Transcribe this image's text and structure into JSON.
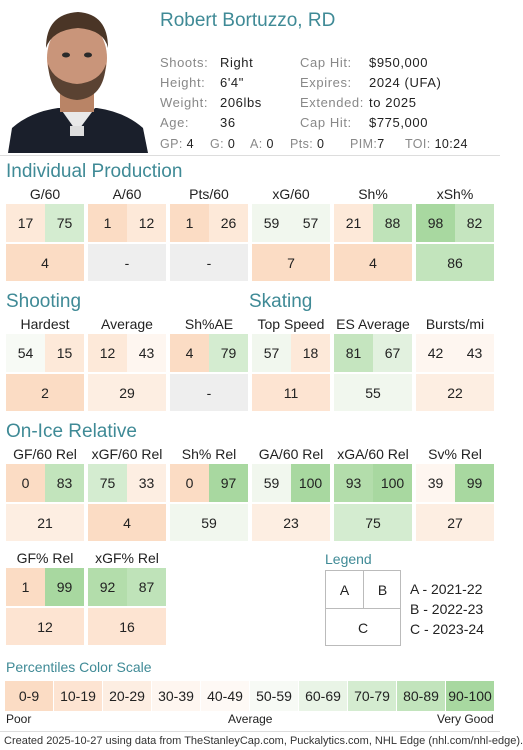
{
  "header": {
    "name": "Robert Bortuzzo, RD",
    "info_left": [
      {
        "k": "Shoots:",
        "v": "Right"
      },
      {
        "k": "Height:",
        "v": "6'4\""
      },
      {
        "k": "Weight:",
        "v": "206lbs"
      },
      {
        "k": "Age:",
        "v": "36"
      }
    ],
    "info_right": [
      {
        "k": "Cap Hit:",
        "v": "$950,000"
      },
      {
        "k": "Expires:",
        "v": "2024 (UFA)"
      },
      {
        "k": "Extended:",
        "v": "to 2025"
      },
      {
        "k": "Cap Hit:",
        "v": "$775,000"
      }
    ],
    "stats": [
      {
        "k": "GP:",
        "v": "4"
      },
      {
        "k": "G:",
        "v": "0"
      },
      {
        "k": "A:",
        "v": "0"
      },
      {
        "k": "Pts:",
        "v": "0"
      },
      {
        "k": "PIM:",
        "v": "7"
      },
      {
        "k": "TOI:",
        "v": "10:24"
      }
    ]
  },
  "sections": {
    "production": "Individual Production",
    "shooting": "Shooting",
    "skating": "Skating",
    "onice": "On-Ice Relative"
  },
  "metrics": [
    {
      "label": "G/60",
      "a": "17",
      "b": "75",
      "c": "4",
      "ca": "#fde9d9",
      "cb": "#d4ecd0",
      "cc": "#fbdcc4"
    },
    {
      "label": "A/60",
      "a": "1",
      "b": "12",
      "c": "-",
      "ca": "#fbdcc4",
      "cb": "#fde9d9",
      "cc": "#eeeeee"
    },
    {
      "label": "Pts/60",
      "a": "1",
      "b": "26",
      "c": "-",
      "ca": "#fbdcc4",
      "cb": "#fde9d9",
      "cc": "#eeeeee"
    },
    {
      "label": "xG/60",
      "a": "59",
      "b": "57",
      "c": "7",
      "ca": "#f1f7ee",
      "cb": "#f1f7ee",
      "cc": "#fbdcc4"
    },
    {
      "label": "Sh%",
      "a": "21",
      "b": "88",
      "c": "4",
      "ca": "#fde9d9",
      "cb": "#bfe3b9",
      "cc": "#fbdcc4"
    },
    {
      "label": "xSh%",
      "a": "98",
      "b": "82",
      "c": "86",
      "ca": "#a8d8a0",
      "cb": "#c5e5bf",
      "cc": "#c2e4bc"
    },
    {
      "label": "Hardest",
      "a": "54",
      "b": "15",
      "c": "2",
      "ca": "#f7faf5",
      "cb": "#fde9d9",
      "cc": "#fbdcc4"
    },
    {
      "label": "Average",
      "a": "12",
      "b": "43",
      "c": "29",
      "ca": "#fde9d9",
      "cb": "#fef6f0",
      "cc": "#fdeee2"
    },
    {
      "label": "Sh%AE",
      "a": "4",
      "b": "79",
      "c": "-",
      "ca": "#fbdcc4",
      "cb": "#d4ecd0",
      "cc": "#eeeeee"
    },
    {
      "label": "Top Speed",
      "a": "57",
      "b": "18",
      "c": "11",
      "ca": "#f1f7ee",
      "cb": "#fde9d9",
      "cc": "#fde4d2"
    },
    {
      "label": "ES Average",
      "a": "81",
      "b": "67",
      "c": "55",
      "ca": "#c5e5bf",
      "cb": "#e2f1df",
      "cc": "#f1f7ee"
    },
    {
      "label": "Bursts/mi",
      "a": "42",
      "b": "43",
      "c": "22",
      "ca": "#fef6f0",
      "cb": "#fef6f0",
      "cc": "#fdeee2"
    },
    {
      "label": "GF/60 Rel",
      "a": "0",
      "b": "83",
      "c": "21",
      "ca": "#fbdcc4",
      "cb": "#c2e4bc",
      "cc": "#fdeee2"
    },
    {
      "label": "xGF/60 Rel",
      "a": "75",
      "b": "33",
      "c": "4",
      "ca": "#d4ecd0",
      "cb": "#fdeee2",
      "cc": "#fbdcc4"
    },
    {
      "label": "Sh% Rel",
      "a": "0",
      "b": "97",
      "c": "59",
      "ca": "#fbdcc4",
      "cb": "#a8d8a0",
      "cc": "#f1f7ee"
    },
    {
      "label": "GA/60 Rel",
      "a": "59",
      "b": "100",
      "c": "23",
      "ca": "#f1f7ee",
      "cb": "#a8d8a0",
      "cc": "#fdeee2"
    },
    {
      "label": "xGA/60 Rel",
      "a": "93",
      "b": "100",
      "c": "75",
      "ca": "#b3ddab",
      "cb": "#a8d8a0",
      "cc": "#d4ecd0"
    },
    {
      "label": "Sv% Rel",
      "a": "39",
      "b": "99",
      "c": "27",
      "ca": "#fef6f0",
      "cb": "#a8d8a0",
      "cc": "#fdeee2"
    },
    {
      "label": "GF% Rel",
      "a": "1",
      "b": "99",
      "c": "12",
      "ca": "#fbdcc4",
      "cb": "#a8d8a0",
      "cc": "#fde4d2"
    },
    {
      "label": "xGF% Rel",
      "a": "92",
      "b": "87",
      "c": "16",
      "ca": "#b3ddab",
      "cb": "#bfe3b9",
      "cc": "#fde4d2"
    }
  ],
  "legend": {
    "title": "Legend",
    "a": "A",
    "b": "B",
    "c": "C",
    "items": [
      "A - 2021-22",
      "B - 2022-23",
      "C - 2023-24"
    ]
  },
  "scale": {
    "title": "Percentiles Color Scale",
    "bins": [
      {
        "label": "0-9",
        "color": "#fbdcc4"
      },
      {
        "label": "10-19",
        "color": "#fde4d2"
      },
      {
        "label": "20-29",
        "color": "#fdeee2"
      },
      {
        "label": "30-39",
        "color": "#fef6f0"
      },
      {
        "label": "40-49",
        "color": "#fef9f5"
      },
      {
        "label": "50-59",
        "color": "#f7faf5"
      },
      {
        "label": "60-69",
        "color": "#e9f4e6"
      },
      {
        "label": "70-79",
        "color": "#d4ecd0"
      },
      {
        "label": "80-89",
        "color": "#c2e4bc"
      },
      {
        "label": "90-100",
        "color": "#a8d8a0"
      }
    ],
    "poor": "Poor",
    "average": "Average",
    "very_good": "Very Good"
  },
  "footer": "Created 2025-10-27 using data from TheStanleyCap.com, Puckalytics.com, NHL Edge (nhl.com/nhl-edge)."
}
